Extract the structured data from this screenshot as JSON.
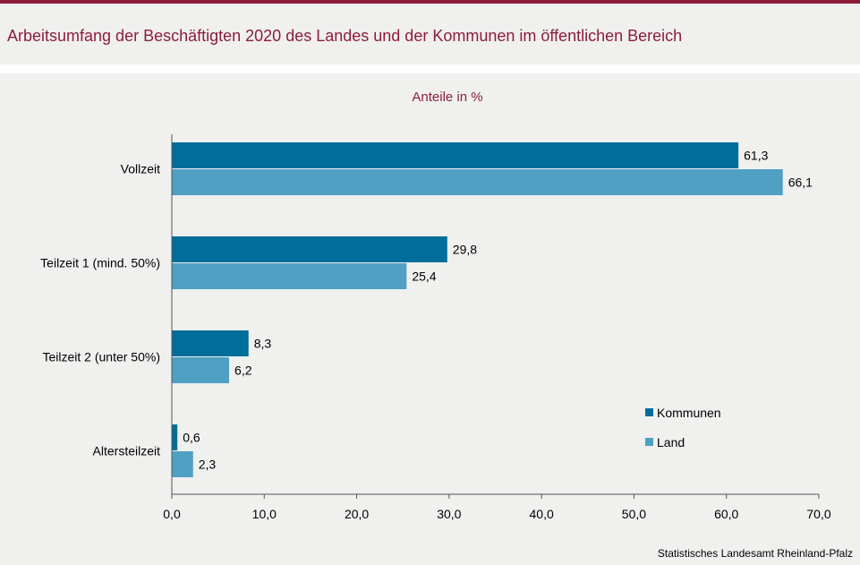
{
  "header": {
    "title": "Arbeitsumfang der Beschäftigten 2020 des Landes und der Kommunen im öffentlichen Bereich",
    "subtitle": "Anteile in %"
  },
  "footer": {
    "source": "Statistisches Landesamt Rheinland-Pfalz"
  },
  "colors": {
    "kommunen": "#006e9b",
    "land": "#4fa0c3",
    "accent": "#8c1d3a"
  },
  "chart_data": {
    "type": "bar",
    "orientation": "horizontal",
    "categories": [
      "Vollzeit",
      "Teilzeit 1 (mind. 50%)",
      "Teilzeit 2 (unter 50%)",
      "Altersteilzeit"
    ],
    "series": [
      {
        "name": "Kommunen",
        "values": [
          61.3,
          29.8,
          8.3,
          0.6
        ],
        "labels": [
          "61,3",
          "29,8",
          "8,3",
          "0,6"
        ]
      },
      {
        "name": "Land",
        "values": [
          66.1,
          25.4,
          6.2,
          2.3
        ],
        "labels": [
          "66,1",
          "25,4",
          "6,2",
          "2,3"
        ]
      }
    ],
    "xlim": [
      0,
      70
    ],
    "xticks": [
      0,
      10,
      20,
      30,
      40,
      50,
      60,
      70
    ],
    "xtick_labels": [
      "0,0",
      "10,0",
      "20,0",
      "30,0",
      "40,0",
      "50,0",
      "60,0",
      "70,0"
    ],
    "grid": false,
    "legend_position": "bottom-right"
  }
}
